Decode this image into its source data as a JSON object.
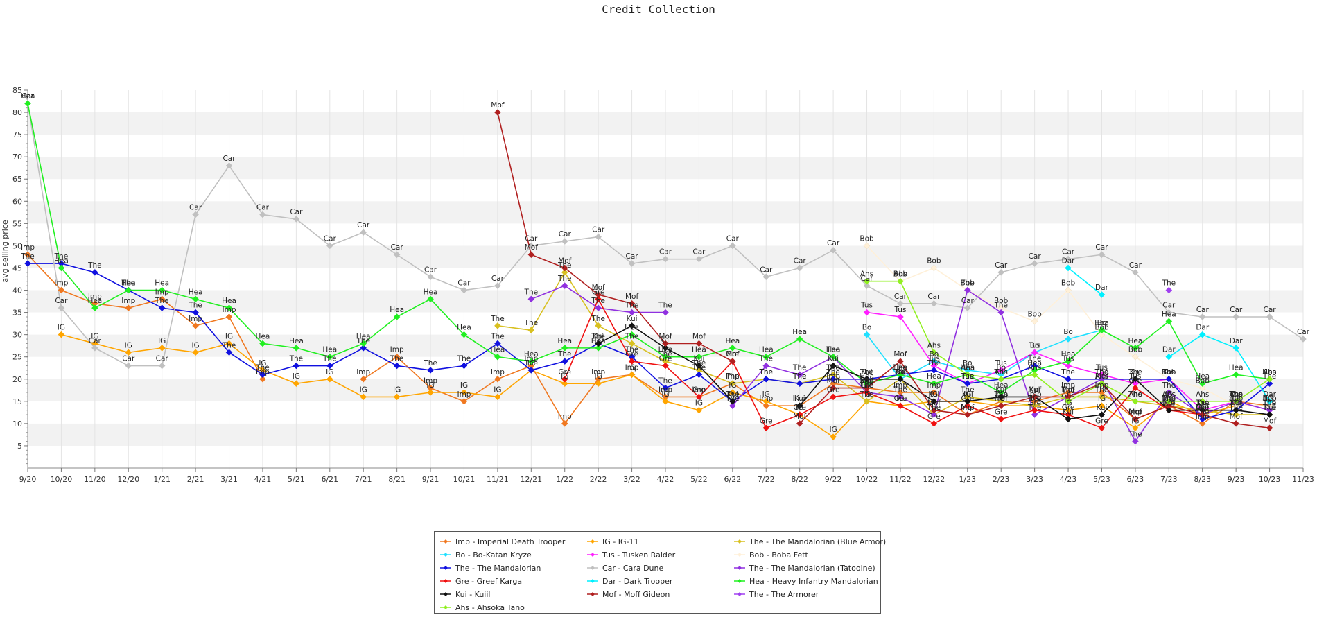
{
  "chart_data": {
    "type": "line",
    "title": "Credit Collection",
    "ylabel": "avg selling price",
    "xlabel": "",
    "ylim": [
      0,
      85
    ],
    "yticks": [
      5,
      10,
      15,
      20,
      25,
      30,
      35,
      40,
      45,
      50,
      55,
      60,
      65,
      70,
      75,
      80,
      85
    ],
    "grid": "alternating horizontal bands with vertical gridlines",
    "legend_position": "bottom-center",
    "categories": [
      "9/20",
      "10/20",
      "11/20",
      "12/20",
      "1/21",
      "2/21",
      "3/21",
      "4/21",
      "5/21",
      "6/21",
      "7/21",
      "8/21",
      "9/21",
      "10/21",
      "11/21",
      "12/21",
      "1/22",
      "2/22",
      "3/22",
      "4/22",
      "5/22",
      "6/22",
      "7/22",
      "8/22",
      "9/22",
      "10/22",
      "11/22",
      "12/22",
      "1/23",
      "2/23",
      "3/23",
      "4/23",
      "5/23",
      "6/23",
      "7/23",
      "8/23",
      "9/23",
      "10/23",
      "11/23"
    ],
    "series": [
      {
        "name": "Imp - Imperial Death Trooper",
        "abbr": "Imp",
        "color": "#f07820",
        "values": [
          48,
          40,
          37,
          36,
          38,
          32,
          34,
          20,
          null,
          null,
          20,
          25,
          18,
          15,
          20,
          23,
          10,
          20,
          21,
          16,
          16,
          19,
          14,
          14,
          19,
          18,
          17,
          17,
          12,
          15,
          15,
          17,
          17,
          11,
          14,
          10,
          15,
          14,
          null
        ]
      },
      {
        "name": "IG - IG-11",
        "abbr": "IG",
        "color": "#ffa500",
        "values": [
          null,
          30,
          28,
          26,
          27,
          26,
          28,
          22,
          19,
          20,
          16,
          16,
          17,
          17,
          16,
          22,
          19,
          19,
          21,
          15,
          13,
          17,
          15,
          12,
          7,
          15,
          14,
          15,
          15,
          14,
          14,
          13,
          14,
          9,
          15,
          12,
          14,
          14,
          null
        ]
      },
      {
        "name": "The - The Mandalorian (Blue Armor)",
        "abbr": "The",
        "color": "#d8c020",
        "values": [
          null,
          null,
          null,
          null,
          null,
          null,
          null,
          null,
          null,
          null,
          null,
          null,
          null,
          null,
          32,
          31,
          44,
          32,
          28,
          24,
          22,
          19,
          20,
          19,
          21,
          15,
          20,
          12,
          16,
          15,
          14,
          16,
          16,
          15,
          14,
          13,
          12,
          12,
          null
        ]
      },
      {
        "name": "Bo - Bo-Katan Kryze",
        "abbr": "Bo",
        "color": "#20e0ff",
        "values": [
          null,
          null,
          null,
          null,
          null,
          null,
          null,
          null,
          null,
          null,
          null,
          null,
          null,
          null,
          null,
          null,
          null,
          null,
          null,
          null,
          null,
          null,
          null,
          null,
          null,
          30,
          20,
          24,
          22,
          21,
          26,
          29,
          31,
          null,
          null,
          null,
          null,
          null,
          null
        ]
      },
      {
        "name": "Tus - Tusken Raider",
        "abbr": "Tus",
        "color": "#ff20ff",
        "values": [
          null,
          null,
          null,
          null,
          null,
          null,
          null,
          null,
          null,
          null,
          null,
          null,
          null,
          null,
          null,
          null,
          null,
          null,
          null,
          null,
          null,
          null,
          null,
          null,
          null,
          35,
          34,
          23,
          19,
          22,
          26,
          23,
          21,
          19,
          20,
          13,
          15,
          13,
          null
        ]
      },
      {
        "name": "Bob - Boba Fett",
        "abbr": "Bob",
        "color": "#fff0d8",
        "values": [
          null,
          null,
          null,
          null,
          null,
          null,
          null,
          null,
          null,
          null,
          null,
          null,
          null,
          null,
          null,
          null,
          null,
          null,
          null,
          null,
          null,
          null,
          null,
          null,
          null,
          50,
          42,
          45,
          40,
          36,
          33,
          40,
          30,
          25,
          20,
          18,
          14,
          14,
          null
        ]
      },
      {
        "name": "The - The Mandalorian",
        "abbr": "The",
        "color": "#1010e0",
        "values": [
          46,
          46,
          44,
          40,
          36,
          35,
          26,
          21,
          23,
          23,
          27,
          23,
          22,
          23,
          28,
          22,
          24,
          28,
          25,
          18,
          21,
          15,
          20,
          19,
          20,
          20,
          21,
          22,
          19,
          20,
          23,
          20,
          20,
          20,
          20,
          11,
          13,
          19,
          null
        ]
      },
      {
        "name": "Car - Cara Dune",
        "abbr": "Car",
        "color": "#c0c0c0",
        "values": [
          82,
          36,
          27,
          23,
          23,
          57,
          68,
          57,
          56,
          50,
          53,
          48,
          43,
          40,
          41,
          50,
          51,
          52,
          46,
          47,
          47,
          50,
          43,
          45,
          49,
          41,
          37,
          37,
          36,
          44,
          46,
          47,
          48,
          44,
          35,
          34,
          34,
          34,
          29
        ]
      },
      {
        "name": "The - The Mandalorian (Tatooine)",
        "abbr": "The",
        "color": "#9030e0",
        "values": [
          null,
          null,
          null,
          null,
          null,
          null,
          null,
          null,
          null,
          null,
          null,
          null,
          null,
          null,
          null,
          38,
          41,
          36,
          35,
          35,
          null,
          14,
          23,
          21,
          25,
          17,
          16,
          12,
          40,
          35,
          12,
          16,
          20,
          6,
          17,
          12,
          15,
          13,
          null
        ]
      },
      {
        "name": "Gre - Greef Karga",
        "abbr": "Gre",
        "color": "#f01010",
        "values": [
          null,
          null,
          null,
          null,
          null,
          null,
          null,
          null,
          null,
          null,
          null,
          null,
          null,
          null,
          null,
          null,
          20,
          38,
          24,
          23,
          16,
          24,
          9,
          12,
          16,
          17,
          14,
          10,
          14,
          11,
          13,
          12,
          9,
          18,
          13,
          12,
          null,
          null,
          null
        ]
      },
      {
        "name": "Dar - Dark Trooper",
        "abbr": "Dar",
        "color": "#00f0ff",
        "values": [
          null,
          null,
          null,
          null,
          null,
          null,
          null,
          null,
          null,
          null,
          null,
          null,
          null,
          null,
          null,
          null,
          null,
          null,
          null,
          null,
          null,
          null,
          null,
          null,
          null,
          null,
          null,
          null,
          null,
          null,
          null,
          45,
          39,
          null,
          25,
          30,
          27,
          15,
          null
        ]
      },
      {
        "name": "Hea - Heavy Infantry Mandalorian",
        "abbr": "Hea",
        "color": "#20f020",
        "values": [
          82,
          45,
          36,
          40,
          40,
          38,
          36,
          28,
          27,
          25,
          28,
          34,
          38,
          30,
          25,
          24,
          27,
          27,
          30,
          25,
          25,
          27,
          25,
          29,
          25,
          19,
          21,
          19,
          21,
          17,
          22,
          24,
          31,
          27,
          33,
          19,
          21,
          20,
          null
        ]
      },
      {
        "name": "Kui - Kuiil",
        "abbr": "Kui",
        "color": "#101010",
        "values": [
          null,
          null,
          null,
          null,
          null,
          null,
          null,
          null,
          null,
          null,
          null,
          null,
          null,
          null,
          null,
          null,
          null,
          28,
          32,
          27,
          23,
          15,
          null,
          14,
          23,
          20,
          20,
          15,
          15,
          16,
          16,
          11,
          12,
          20,
          13,
          13,
          13,
          12,
          null
        ]
      },
      {
        "name": "Mof - Moff Gideon",
        "abbr": "Mof",
        "color": "#b02020",
        "values": [
          null,
          null,
          null,
          null,
          null,
          null,
          null,
          null,
          null,
          null,
          null,
          null,
          null,
          null,
          80,
          48,
          45,
          39,
          37,
          28,
          28,
          24,
          null,
          10,
          18,
          18,
          24,
          13,
          12,
          14,
          16,
          16,
          19,
          11,
          14,
          12,
          10,
          9,
          null
        ]
      },
      {
        "name": "The - The Armorer",
        "abbr": "The",
        "color": "#a040f0",
        "values": [
          null,
          null,
          null,
          null,
          null,
          null,
          null,
          null,
          null,
          null,
          null,
          null,
          null,
          null,
          null,
          null,
          null,
          null,
          null,
          null,
          null,
          null,
          null,
          null,
          null,
          null,
          null,
          null,
          null,
          null,
          null,
          null,
          null,
          null,
          40,
          null,
          null,
          null,
          null
        ]
      },
      {
        "name": "Ahs - Ahsoka Tano",
        "abbr": "Ahs",
        "color": "#90f020",
        "values": [
          null,
          null,
          null,
          null,
          null,
          null,
          null,
          null,
          null,
          null,
          null,
          null,
          null,
          null,
          null,
          null,
          null,
          null,
          null,
          null,
          null,
          null,
          null,
          null,
          null,
          42,
          42,
          26,
          21,
          20,
          21,
          15,
          19,
          15,
          15,
          15,
          15,
          20,
          null
        ]
      }
    ]
  }
}
